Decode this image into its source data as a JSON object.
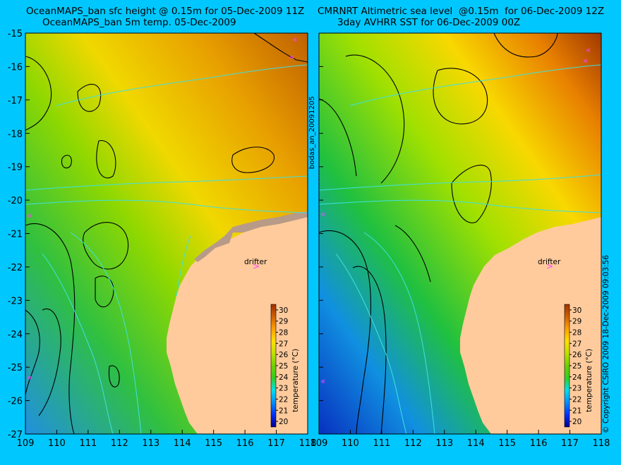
{
  "left_panel": {
    "title_line1": "OceanMAPS_ban sfc height @ 0.15m for 05-Dec-2009 11Z",
    "title_line2": "OceanMAPS_ban 5m temp. 05-Dec-2009",
    "drifter_label": "drifter",
    "colorbar_label": "temperature (°C)"
  },
  "right_panel": {
    "title_line1": "CMRNRT Altimetric sea level  @0.15m  for 06-Dec-2009 12Z",
    "title_line2": "3day AVHRR SST for 06-Dec-2009 00Z",
    "drifter_label": "drifter",
    "colorbar_label": "temperature (°C)"
  },
  "side_label_left": "bodas_an_20091205",
  "side_label_right": "© Copyright CSIRO 2009   18-Dec-2009 09:03:56",
  "map": {
    "lon_ticks": [
      "109",
      "110",
      "111",
      "112",
      "113",
      "114",
      "115",
      "116",
      "117",
      "118"
    ],
    "lat_ticks": [
      "-15",
      "-16",
      "-17",
      "-18",
      "-19",
      "-20",
      "-21",
      "-22",
      "-23",
      "-24",
      "-25",
      "-26",
      "-27"
    ],
    "lon_range": [
      109,
      118
    ],
    "lat_range": [
      -27,
      -15
    ]
  },
  "colorbar": {
    "ticks": [
      "30",
      "29",
      "28",
      "27",
      "26",
      "25",
      "24",
      "23",
      "22",
      "21",
      "20"
    ],
    "range": [
      19.5,
      30.5
    ],
    "colors": [
      "#00008F",
      "#0030FF",
      "#0090FF",
      "#00E0F0",
      "#30D020",
      "#70D000",
      "#C0E000",
      "#FFE000",
      "#FFA000",
      "#D06000",
      "#A03000"
    ]
  },
  "colors": {
    "background": "#00C8FF",
    "land": "#FFCB9C",
    "drifter": "#FF40FF",
    "contour": "#000000",
    "isobath": "#40E0E0"
  }
}
